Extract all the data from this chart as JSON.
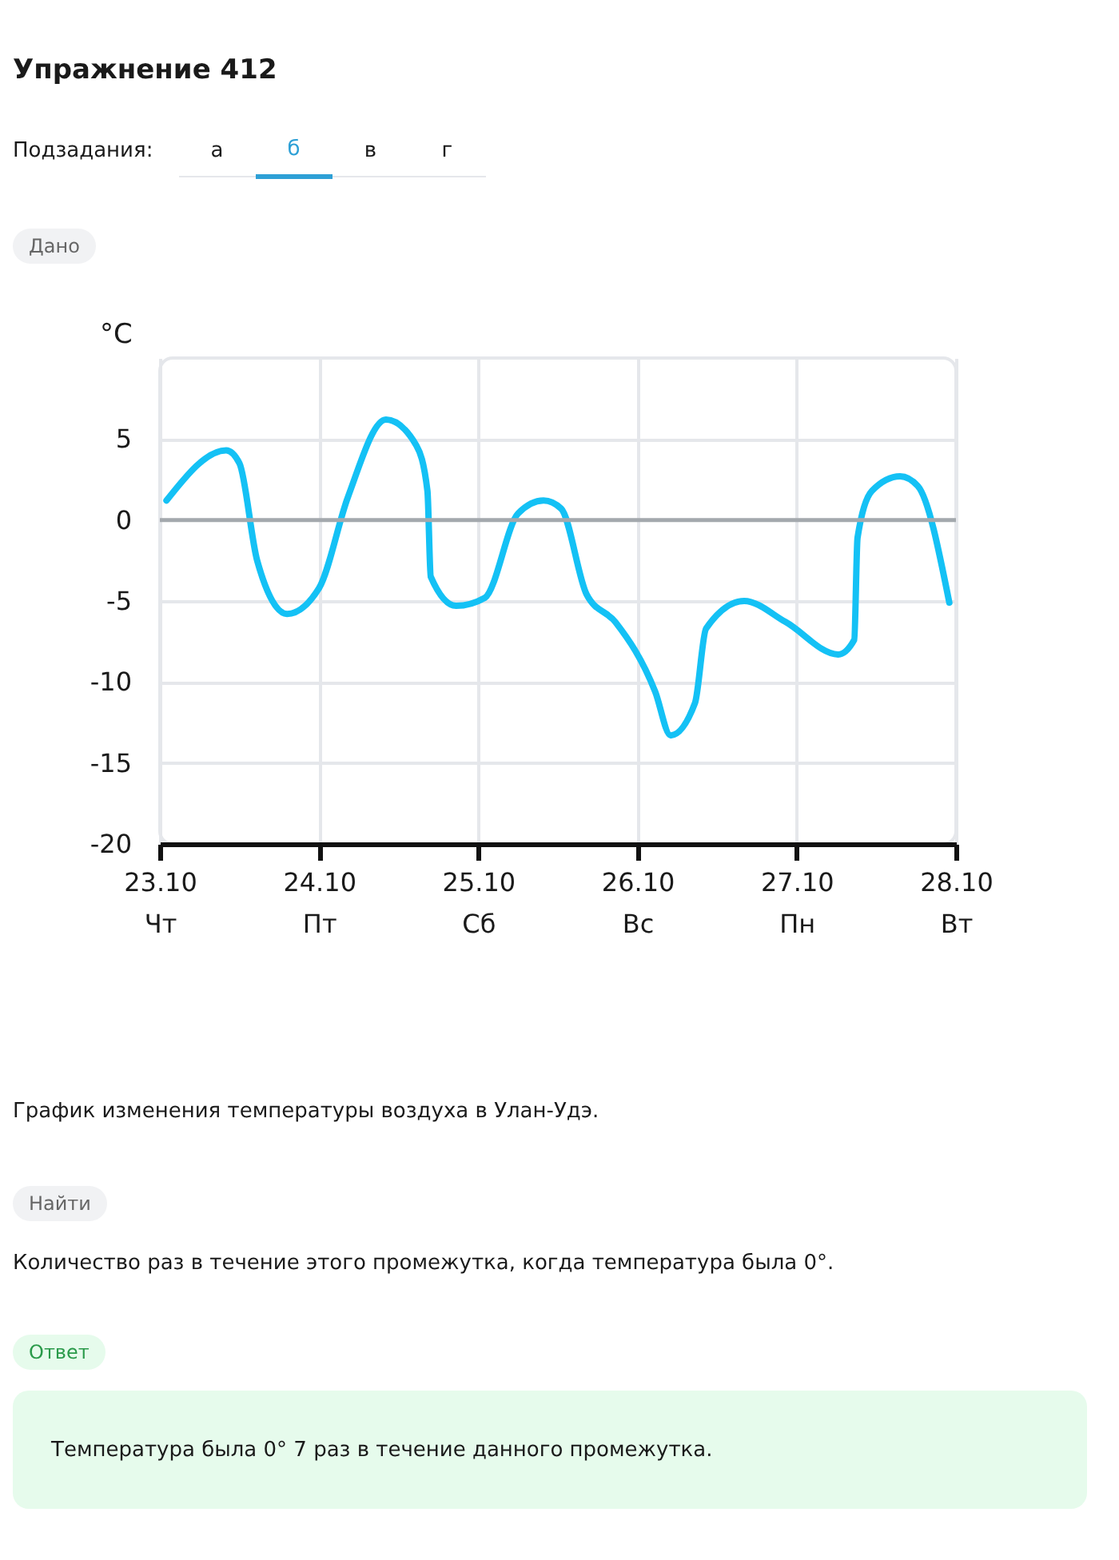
{
  "chart_data": {
    "type": "line",
    "title": "Упражнение 412",
    "ylabel": "°C",
    "annotations": [
      "Подзадания:",
      "а",
      "б",
      "в",
      "г",
      "Дано",
      "График изменения температуры воздуха в Улан-Удэ.",
      "Найти",
      "Количество раз в течение этого промежутка, когда температура была 0°.",
      "Ответ",
      "Температура была 0° 7 раз в течение данного промежутка."
    ],
    "series": [
      {
        "color": "#14c1f5",
        "x": [
          "--10-23T01:00",
          "--10-23T10:00",
          "--10-23T12:00",
          "--10-23T14:40",
          "--10-23T19:10",
          "--10-24T00:00",
          "--10-24T04:20",
          "--10-24T10:05",
          "--10-24T14:40",
          "--10-24T16:20",
          "--10-24T16:50",
          "--10-24T20:40",
          "--10-25T01:00",
          "--10-25T06:00",
          "--10-25T09:50",
          "--10-25T12:30",
          "--10-25T16:20",
          "--10-25T20:40",
          "--10-26T02:40",
          "--10-26T05:00",
          "--10-26T08:40",
          "--10-26T10:20",
          "--10-26T16:05",
          "--10-26T22:20",
          "--10-27T06:15",
          "--10-27T08:40",
          "--10-27T09:10",
          "--10-27T11:20",
          "--10-27T15:35",
          "--10-27T18:15",
          "--10-27T23:00"
        ],
        "values": [
          1.2,
          4.3,
          3.5,
          -2.5,
          -5.8,
          -4.2,
          1.4,
          6.2,
          4.6,
          1.8,
          -3.5,
          -5.3,
          -4.8,
          0.4,
          1.2,
          0.7,
          -4.6,
          -6.3,
          -10.6,
          -13.3,
          -11.3,
          -6.7,
          -5.0,
          -6.3,
          -8.3,
          -7.4,
          -1.1,
          1.8,
          2.7,
          2.1,
          -5.1
        ]
      }
    ],
    "xlim": [
      "--10-23",
      "--10-28"
    ],
    "xticks": [
      {
        "value": "--10-23",
        "label": "23.10\nЧт"
      },
      {
        "value": "--10-24",
        "label": "24.10\nПт"
      },
      {
        "value": "--10-25",
        "label": "25.10\nСб"
      },
      {
        "value": "--10-26",
        "label": "26.10\nВс"
      },
      {
        "value": "--10-27",
        "label": "27.10\nПн"
      },
      {
        "value": "--10-28",
        "label": "28.10\nВт"
      }
    ],
    "ylim": [
      -20,
      10
    ],
    "yticks": [
      -20,
      -15,
      -10,
      -5,
      0,
      5
    ],
    "ref_lines": [
      {
        "axis": "y",
        "value": 0,
        "color": "#a3a8ad"
      }
    ],
    "grid": true,
    "line_style": "solid",
    "marker": "none"
  }
}
